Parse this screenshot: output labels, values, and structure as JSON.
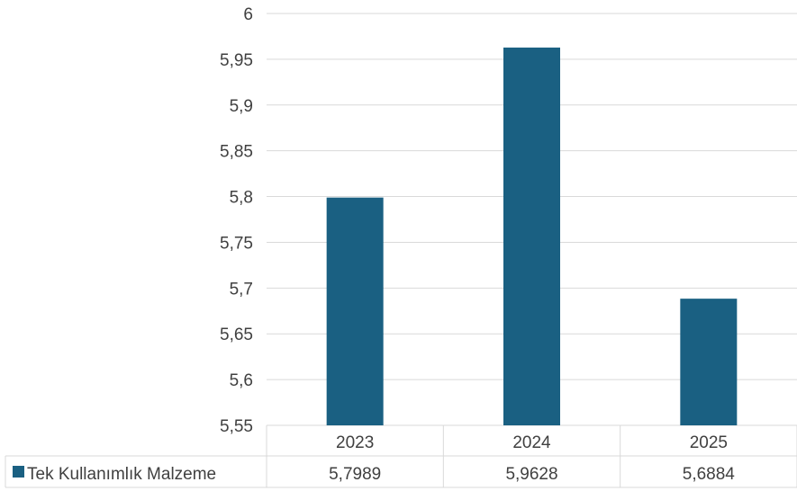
{
  "chart_data": {
    "type": "bar",
    "categories": [
      "2023",
      "2024",
      "2025"
    ],
    "series": [
      {
        "name": "Tek Kullanımlık Malzeme",
        "values": [
          5.7989,
          5.9628,
          5.6884
        ],
        "value_labels": [
          "5,7989",
          "5,9628",
          "5,6884"
        ],
        "color": "#1a6082"
      }
    ],
    "ylim": [
      5.55,
      6
    ],
    "yticks": [
      5.55,
      5.6,
      5.65,
      5.7,
      5.75,
      5.8,
      5.85,
      5.9,
      5.95,
      6
    ],
    "ytick_labels": [
      "5,55",
      "5,6",
      "5,65",
      "5,7",
      "5,75",
      "5,8",
      "5,85",
      "5,9",
      "5,95",
      "6"
    ],
    "grid": true,
    "legend": "data-table",
    "data_table": true
  },
  "colors": {
    "bar": "#1a6082",
    "grid": "#d9d9d9",
    "text": "#404040"
  }
}
